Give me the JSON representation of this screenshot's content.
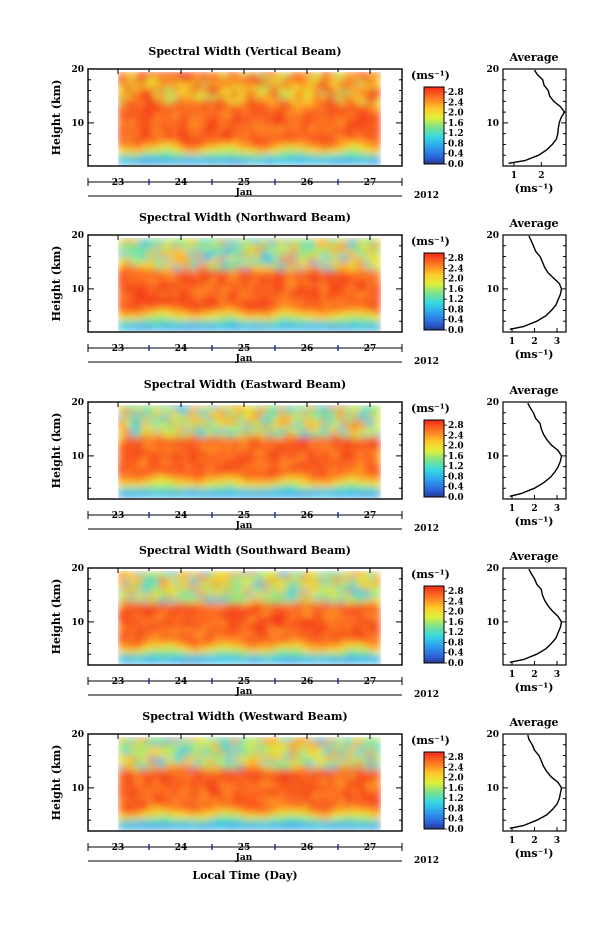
{
  "figure": {
    "xlabel": "Local Time (Day)",
    "month_label": "Jan",
    "year_label": "2012"
  },
  "chart_data": [
    {
      "type": "heatmap",
      "title": "Spectral Width (Vertical Beam)",
      "ylabel": "Height (km)",
      "yticks": [
        10,
        20
      ],
      "ylim": [
        2,
        20
      ],
      "xticks": [
        "23",
        "24",
        "25",
        "26",
        "27"
      ],
      "colorbar": {
        "label": "(ms⁻¹)",
        "ticks": [
          "0.0",
          "0.4",
          "0.8",
          "1.2",
          "1.6",
          "2.0",
          "2.4",
          "2.8"
        ],
        "range": [
          0,
          3.0
        ]
      },
      "average_profile": {
        "title": "Average",
        "xlabel": "(ms⁻¹)",
        "xticks": [
          "1",
          "2"
        ],
        "xlim": [
          0.6,
          2.9
        ],
        "height": [
          2.5,
          3,
          4,
          5,
          6,
          7,
          8,
          9,
          10,
          11,
          12,
          13,
          14,
          15,
          16,
          17,
          18,
          19,
          19.8
        ],
        "value": [
          0.8,
          1.4,
          1.9,
          2.2,
          2.4,
          2.55,
          2.6,
          2.62,
          2.65,
          2.72,
          2.85,
          2.7,
          2.45,
          2.3,
          2.25,
          2.1,
          2.05,
          1.85,
          1.75
        ]
      }
    },
    {
      "type": "heatmap",
      "title": "Spectral Width (Northward Beam)",
      "ylabel": "Height (km)",
      "yticks": [
        10,
        20
      ],
      "ylim": [
        2,
        20
      ],
      "xticks": [
        "23",
        "24",
        "25",
        "26",
        "27"
      ],
      "colorbar": {
        "label": "(ms⁻¹)",
        "ticks": [
          "0.0",
          "0.4",
          "0.8",
          "1.2",
          "1.6",
          "2.0",
          "2.4",
          "2.8"
        ],
        "range": [
          0,
          3.0
        ]
      },
      "average_profile": {
        "title": "Average",
        "xlabel": "(ms⁻¹)",
        "xticks": [
          "1",
          "2",
          "3"
        ],
        "xlim": [
          0.6,
          3.4
        ],
        "height": [
          2.5,
          3,
          4,
          5,
          6,
          7,
          8,
          9,
          10,
          11,
          12,
          13,
          14,
          15,
          16,
          17,
          18,
          19,
          19.8
        ],
        "value": [
          0.9,
          1.5,
          2.1,
          2.5,
          2.75,
          2.95,
          3.05,
          3.15,
          3.2,
          3.1,
          2.85,
          2.6,
          2.45,
          2.35,
          2.25,
          2.05,
          1.95,
          1.85,
          1.75
        ]
      }
    },
    {
      "type": "heatmap",
      "title": "Spectral Width (Eastward Beam)",
      "ylabel": "Height (km)",
      "yticks": [
        10,
        20
      ],
      "ylim": [
        2,
        20
      ],
      "xticks": [
        "23",
        "24",
        "25",
        "26",
        "27"
      ],
      "colorbar": {
        "label": "(ms⁻¹)",
        "ticks": [
          "0.0",
          "0.4",
          "0.8",
          "1.2",
          "1.6",
          "2.0",
          "2.4",
          "2.8"
        ],
        "range": [
          0,
          3.0
        ]
      },
      "average_profile": {
        "title": "Average",
        "xlabel": "(ms⁻¹)",
        "xticks": [
          "1",
          "2",
          "3"
        ],
        "xlim": [
          0.6,
          3.4
        ],
        "height": [
          2.5,
          3,
          4,
          5,
          6,
          7,
          8,
          9,
          10,
          11,
          12,
          13,
          14,
          15,
          16,
          17,
          18,
          19,
          19.8
        ],
        "value": [
          0.9,
          1.4,
          2.0,
          2.4,
          2.7,
          2.9,
          3.05,
          3.15,
          3.2,
          3.05,
          2.75,
          2.55,
          2.4,
          2.3,
          2.25,
          2.05,
          1.95,
          1.8,
          1.7
        ]
      }
    },
    {
      "type": "heatmap",
      "title": "Spectral Width (Southward Beam)",
      "ylabel": "Height (km)",
      "yticks": [
        10,
        20
      ],
      "ylim": [
        2,
        20
      ],
      "xticks": [
        "23",
        "24",
        "25",
        "26",
        "27"
      ],
      "colorbar": {
        "label": "(ms⁻¹)",
        "ticks": [
          "0.0",
          "0.4",
          "0.8",
          "1.2",
          "1.6",
          "2.0",
          "2.4",
          "2.8"
        ],
        "range": [
          0,
          3.0
        ]
      },
      "average_profile": {
        "title": "Average",
        "xlabel": "(ms⁻¹)",
        "xticks": [
          "1",
          "2",
          "3"
        ],
        "xlim": [
          0.6,
          3.4
        ],
        "height": [
          2.5,
          3,
          4,
          5,
          6,
          7,
          8,
          9,
          10,
          11,
          12,
          13,
          14,
          15,
          16,
          17,
          18,
          19,
          19.8
        ],
        "value": [
          0.9,
          1.5,
          2.1,
          2.5,
          2.75,
          2.95,
          3.05,
          3.15,
          3.2,
          3.05,
          2.8,
          2.6,
          2.45,
          2.35,
          2.3,
          2.1,
          2.0,
          1.85,
          1.75
        ]
      }
    },
    {
      "type": "heatmap",
      "title": "Spectral Width (Westward Beam)",
      "ylabel": "Height (km)",
      "yticks": [
        10,
        20
      ],
      "ylim": [
        2,
        20
      ],
      "xticks": [
        "23",
        "24",
        "25",
        "26",
        "27"
      ],
      "colorbar": {
        "label": "(ms⁻¹)",
        "ticks": [
          "0.0",
          "0.4",
          "0.8",
          "1.2",
          "1.6",
          "2.0",
          "2.4",
          "2.8"
        ],
        "range": [
          0,
          3.0
        ]
      },
      "average_profile": {
        "title": "Average",
        "xlabel": "(ms⁻¹)",
        "xticks": [
          "1",
          "2",
          "3"
        ],
        "xlim": [
          0.6,
          3.4
        ],
        "height": [
          2.5,
          3,
          4,
          5,
          6,
          7,
          8,
          9,
          10,
          11,
          12,
          13,
          14,
          15,
          16,
          17,
          18,
          19,
          19.8
        ],
        "value": [
          0.9,
          1.5,
          2.1,
          2.55,
          2.8,
          3.0,
          3.1,
          3.15,
          3.2,
          3.05,
          2.75,
          2.55,
          2.4,
          2.3,
          2.2,
          2.0,
          1.9,
          1.75,
          1.7
        ]
      }
    }
  ]
}
